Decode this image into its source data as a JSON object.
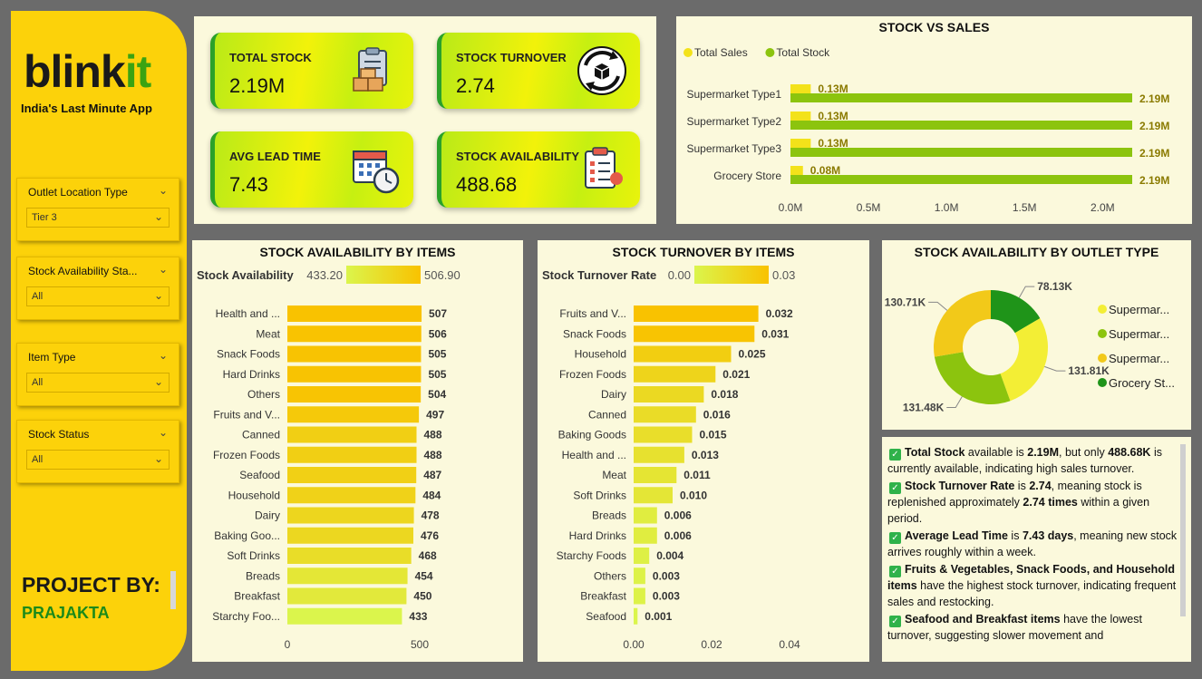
{
  "brand": {
    "logo_main": "blink",
    "logo_accent": "it",
    "tagline": "India's Last Minute App"
  },
  "slicers": [
    {
      "label": "Outlet Location Type",
      "value": "Tier 3"
    },
    {
      "label": "Stock Availability Sta...",
      "value": "All"
    },
    {
      "label": "Item Type",
      "value": "All"
    },
    {
      "label": "Stock Status",
      "value": "All"
    }
  ],
  "project": {
    "label": "PROJECT BY:",
    "author": "PRAJAKTA"
  },
  "kpis": [
    {
      "label": "TOTAL STOCK",
      "value": "2.19M",
      "icon": "clipboard-boxes-icon"
    },
    {
      "label": "STOCK TURNOVER",
      "value": "2.74",
      "icon": "box-cycle-icon"
    },
    {
      "label": "AVG LEAD TIME",
      "value": "7.43",
      "icon": "calendar-clock-icon"
    },
    {
      "label": "STOCK AVAILABILITY",
      "value": "488.68",
      "icon": "checklist-icon"
    }
  ],
  "colors": {
    "sales": "#f3e21a",
    "stock": "#8cc40e",
    "bar_hi": "#f9c200",
    "bar_lo": "#dbf54c",
    "panel": "#fbf9dc",
    "sidebar": "#fcd20a"
  },
  "chart_data": [
    {
      "type": "bar",
      "orientation": "horizontal",
      "title": "STOCK VS SALES",
      "categories": [
        "Supermarket Type1",
        "Supermarket Type2",
        "Supermarket Type3",
        "Grocery Store"
      ],
      "series": [
        {
          "name": "Total Sales",
          "values": [
            0.13,
            0.13,
            0.13,
            0.08
          ],
          "labels": [
            "0.13M",
            "0.13M",
            "0.13M",
            "0.08M"
          ]
        },
        {
          "name": "Total Stock",
          "values": [
            2.19,
            2.19,
            2.19,
            2.19
          ],
          "labels": [
            "2.19M",
            "2.19M",
            "2.19M",
            "2.19M"
          ]
        }
      ],
      "x_ticks": [
        "0.0M",
        "0.5M",
        "1.0M",
        "1.5M",
        "2.0M"
      ],
      "xlim": [
        0,
        2.19
      ],
      "legend": "top-left"
    },
    {
      "type": "bar",
      "orientation": "horizontal",
      "title": "STOCK AVAILABILITY BY ITEMS",
      "color_scale": {
        "label": "Stock Availability",
        "min": "433.20",
        "max": "506.90"
      },
      "categories": [
        "Health and ...",
        "Meat",
        "Snack Foods",
        "Hard Drinks",
        "Others",
        "Fruits and V...",
        "Canned",
        "Frozen Foods",
        "Seafood",
        "Household",
        "Dairy",
        "Baking Goo...",
        "Soft Drinks",
        "Breads",
        "Breakfast",
        "Starchy Foo..."
      ],
      "values": [
        507,
        506,
        505,
        505,
        504,
        497,
        488,
        488,
        487,
        484,
        478,
        476,
        468,
        454,
        450,
        433
      ],
      "labels": [
        "507",
        "506",
        "505",
        "505",
        "504",
        "497",
        "488",
        "488",
        "487",
        "484",
        "478",
        "476",
        "468",
        "454",
        "450",
        "433"
      ],
      "x_ticks": [
        "0",
        "500"
      ],
      "xlim": [
        0,
        500
      ]
    },
    {
      "type": "bar",
      "orientation": "horizontal",
      "title": "STOCK TURNOVER BY ITEMS",
      "color_scale": {
        "label": "Stock Turnover Rate",
        "min": "0.00",
        "max": "0.03"
      },
      "categories": [
        "Fruits and V...",
        "Snack Foods",
        "Household",
        "Frozen Foods",
        "Dairy",
        "Canned",
        "Baking Goods",
        "Health and ...",
        "Meat",
        "Soft Drinks",
        "Breads",
        "Hard Drinks",
        "Starchy Foods",
        "Others",
        "Breakfast",
        "Seafood"
      ],
      "values": [
        0.032,
        0.031,
        0.025,
        0.021,
        0.018,
        0.016,
        0.015,
        0.013,
        0.011,
        0.01,
        0.006,
        0.006,
        0.004,
        0.003,
        0.003,
        0.001
      ],
      "labels": [
        "0.032",
        "0.031",
        "0.025",
        "0.021",
        "0.018",
        "0.016",
        "0.015",
        "0.013",
        "0.011",
        "0.010",
        "0.006",
        "0.006",
        "0.004",
        "0.003",
        "0.003",
        "0.001"
      ],
      "x_ticks": [
        "0.00",
        "0.02",
        "0.04"
      ],
      "xlim": [
        0,
        0.04
      ]
    },
    {
      "type": "pie",
      "variant": "donut",
      "title": "STOCK AVAILABILITY BY OUTLET TYPE",
      "slices": [
        {
          "name": "Supermar...",
          "value": 131.81,
          "label": "131.81K",
          "color": "#f3ee35"
        },
        {
          "name": "Supermar...",
          "value": 131.48,
          "label": "131.48K",
          "color": "#8cc40e"
        },
        {
          "name": "Supermar...",
          "value": 130.71,
          "label": "130.71K",
          "color": "#f2c919"
        },
        {
          "name": "Grocery St...",
          "value": 78.13,
          "label": "78.13K",
          "color": "#1f9419"
        }
      ],
      "legend": "right"
    }
  ],
  "insights": [
    {
      "parts": [
        [
          "b",
          "Total Stock"
        ],
        [
          "n",
          " available is "
        ],
        [
          "b",
          "2.19M"
        ],
        [
          "n",
          ", but only "
        ],
        [
          "b",
          "488.68K"
        ],
        [
          "n",
          " is currently available, indicating high sales turnover."
        ]
      ]
    },
    {
      "parts": [
        [
          "b",
          "Stock Turnover Rate"
        ],
        [
          "n",
          " is "
        ],
        [
          "b",
          "2.74"
        ],
        [
          "n",
          ", meaning stock is replenished approximately "
        ],
        [
          "b",
          "2.74 times"
        ],
        [
          "n",
          " within a given period."
        ]
      ]
    },
    {
      "parts": [
        [
          "b",
          "Average Lead Time"
        ],
        [
          "n",
          " is "
        ],
        [
          "b",
          "7.43 days"
        ],
        [
          "n",
          ", meaning new stock arrives roughly within a week."
        ]
      ]
    },
    {
      "parts": [
        [
          "b",
          "Fruits & Vegetables, Snack Foods, and Household items"
        ],
        [
          "n",
          " have the highest stock turnover, indicating frequent sales and restocking."
        ]
      ]
    },
    {
      "parts": [
        [
          "b",
          "Seafood and Breakfast items"
        ],
        [
          "n",
          " have the lowest turnover, suggesting slower movement and"
        ]
      ]
    }
  ]
}
